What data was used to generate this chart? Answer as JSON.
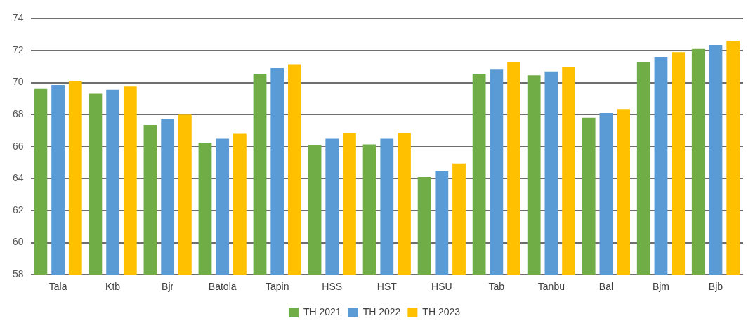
{
  "chart_data": {
    "type": "bar",
    "categories": [
      "Tala",
      "Ktb",
      "Bjr",
      "Batola",
      "Tapin",
      "HSS",
      "HST",
      "HSU",
      "Tab",
      "Tanbu",
      "Bal",
      "Bjm",
      "Bjb"
    ],
    "series": [
      {
        "name": "TH 2021",
        "color": "#70ad47",
        "values": [
          69.6,
          69.3,
          67.35,
          66.25,
          70.55,
          66.1,
          66.15,
          64.1,
          70.55,
          70.45,
          67.8,
          71.3,
          72.1
        ]
      },
      {
        "name": "TH 2022",
        "color": "#5b9bd5",
        "values": [
          69.85,
          69.55,
          67.7,
          66.5,
          70.9,
          66.5,
          66.5,
          64.5,
          70.85,
          70.7,
          68.1,
          71.6,
          72.35
        ]
      },
      {
        "name": "TH 2023",
        "color": "#ffc000",
        "values": [
          70.1,
          69.75,
          68.0,
          66.8,
          71.15,
          66.85,
          66.85,
          64.95,
          71.3,
          70.95,
          68.35,
          71.9,
          72.6
        ]
      }
    ],
    "ylim": [
      58,
      74
    ],
    "yticks": [
      58,
      60,
      62,
      64,
      66,
      68,
      70,
      72,
      74
    ],
    "grid": "y",
    "legend": "bottom"
  }
}
